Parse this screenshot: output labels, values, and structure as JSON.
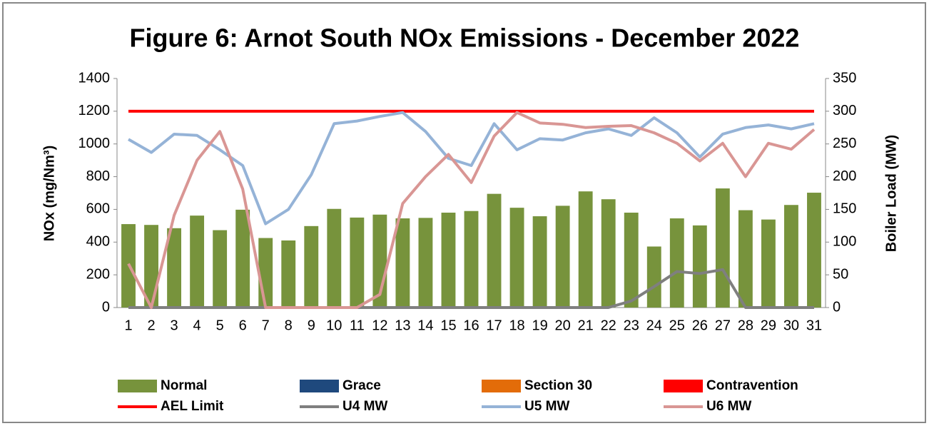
{
  "chart_data": {
    "type": "combo",
    "title": "Figure 6: Arnot South NOx Emissions -  December 2022",
    "ylabel": "NOx (mg/Nm³)",
    "y2label": "Boiler Load (MW)",
    "categories": [
      1,
      2,
      3,
      4,
      5,
      6,
      7,
      8,
      9,
      10,
      11,
      12,
      13,
      14,
      15,
      16,
      17,
      18,
      19,
      20,
      21,
      22,
      23,
      24,
      25,
      26,
      27,
      28,
      29,
      30,
      31
    ],
    "ylim": [
      0,
      1400
    ],
    "yticks": [
      0,
      200,
      400,
      600,
      800,
      1000,
      1200,
      1400
    ],
    "y2lim": [
      0,
      350
    ],
    "y2ticks": [
      0,
      50,
      100,
      150,
      200,
      250,
      300,
      350
    ],
    "legend": "bottom",
    "grid": false,
    "series": [
      {
        "name": "Normal",
        "type": "bar",
        "color": "#77933c",
        "values": [
          510,
          505,
          485,
          562,
          473,
          598,
          425,
          410,
          498,
          603,
          550,
          568,
          545,
          548,
          580,
          590,
          695,
          610,
          558,
          622,
          710,
          662,
          580,
          373,
          545,
          502,
          728,
          595,
          538,
          627,
          702
        ]
      },
      {
        "name": "Grace",
        "type": "bar",
        "color": "#1f497d",
        "values": [
          0,
          0,
          0,
          0,
          0,
          0,
          0,
          0,
          0,
          0,
          0,
          0,
          0,
          0,
          0,
          0,
          0,
          0,
          0,
          0,
          0,
          0,
          0,
          0,
          0,
          0,
          0,
          0,
          0,
          0,
          0
        ]
      },
      {
        "name": "Section 30",
        "type": "bar",
        "color": "#e36c09",
        "values": [
          0,
          0,
          0,
          0,
          0,
          0,
          0,
          0,
          0,
          0,
          0,
          0,
          0,
          0,
          0,
          0,
          0,
          0,
          0,
          0,
          0,
          0,
          0,
          0,
          0,
          0,
          0,
          0,
          0,
          0,
          0
        ]
      },
      {
        "name": "Contravention",
        "type": "bar",
        "color": "#ff0000",
        "values": [
          0,
          0,
          0,
          0,
          0,
          0,
          0,
          0,
          0,
          0,
          0,
          0,
          0,
          0,
          0,
          0,
          0,
          0,
          0,
          0,
          0,
          0,
          0,
          0,
          0,
          0,
          0,
          0,
          0,
          0,
          0
        ]
      },
      {
        "name": "AEL Limit",
        "type": "line",
        "color": "#ff0000",
        "values": [
          1200,
          1200,
          1200,
          1200,
          1200,
          1200,
          1200,
          1200,
          1200,
          1200,
          1200,
          1200,
          1200,
          1200,
          1200,
          1200,
          1200,
          1200,
          1200,
          1200,
          1200,
          1200,
          1200,
          1200,
          1200,
          1200,
          1200,
          1200,
          1200,
          1200,
          1200
        ]
      },
      {
        "name": "U4 MW",
        "type": "line",
        "axis": "y2",
        "color": "#7f7f7f",
        "values": [
          0,
          0,
          0,
          0,
          0,
          0,
          0,
          0,
          0,
          0,
          0,
          0,
          0,
          0,
          0,
          0,
          0,
          0,
          0,
          0,
          0,
          0,
          10,
          32,
          55,
          52,
          58,
          0,
          0,
          0,
          0
        ]
      },
      {
        "name": "U5 MW",
        "type": "line",
        "axis": "y2",
        "color": "#95b3d7",
        "values": [
          257,
          237,
          265,
          263,
          241,
          217,
          128,
          150,
          203,
          281,
          285,
          292,
          298,
          269,
          228,
          217,
          281,
          241,
          258,
          256,
          267,
          273,
          263,
          290,
          267,
          230,
          265,
          275,
          279,
          273,
          281
        ]
      },
      {
        "name": "U6 MW",
        "type": "line",
        "axis": "y2",
        "color": "#d99694",
        "values": [
          67,
          0,
          141,
          225,
          269,
          181,
          0,
          0,
          0,
          0,
          0,
          20,
          159,
          200,
          234,
          191,
          262,
          298,
          282,
          280,
          275,
          277,
          278,
          267,
          251,
          224,
          251,
          200,
          251,
          242,
          272
        ]
      }
    ]
  }
}
